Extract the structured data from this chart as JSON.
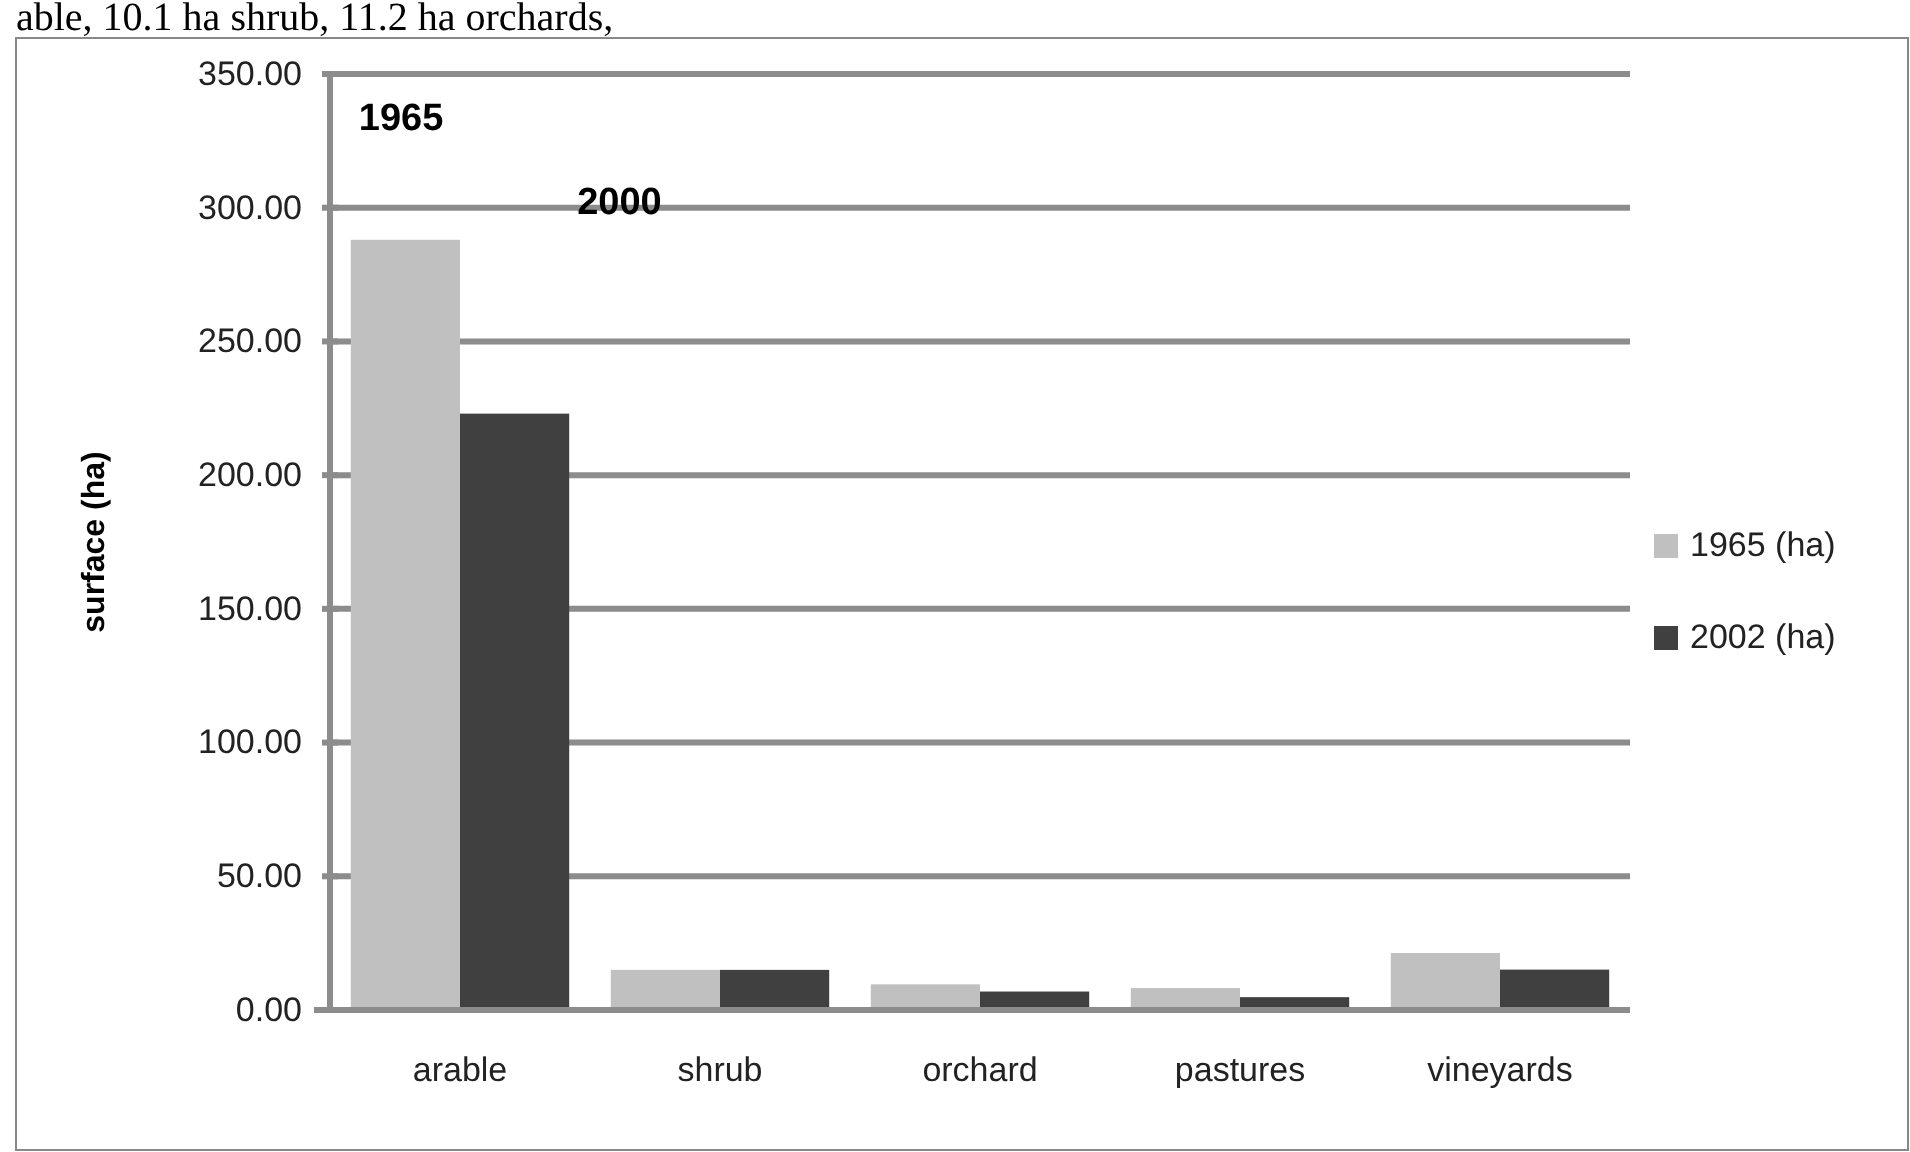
{
  "chart_data": {
    "type": "bar",
    "ylabel": "surface (ha)",
    "categories": [
      "arable",
      "shrub",
      "orchard",
      "pastures",
      "vineyards"
    ],
    "series": [
      {
        "name": "1965 (ha)",
        "color": "#c0c0c0",
        "values": [
          288,
          15,
          9.6,
          8.2,
          21.3
        ]
      },
      {
        "name": "2002 (ha)",
        "color": "#404040",
        "values": [
          223,
          15,
          6.9,
          4.8,
          15.1
        ]
      }
    ],
    "ylim": [
      0,
      350
    ],
    "yticks": [
      {
        "value": 0,
        "label": "0.00"
      },
      {
        "value": 50,
        "label": "50.00"
      },
      {
        "value": 100,
        "label": "100.00"
      },
      {
        "value": 150,
        "label": "150.00"
      },
      {
        "value": 200,
        "label": "200.00"
      },
      {
        "value": 250,
        "label": "250.00"
      },
      {
        "value": 300,
        "label": "300.00"
      },
      {
        "value": 350,
        "label": "350.00"
      }
    ],
    "grid": "y",
    "legend": "right",
    "annotations": [
      "able, 10.1 ha shrub, 11.2 ha orchards,",
      "1965",
      "2000"
    ]
  }
}
